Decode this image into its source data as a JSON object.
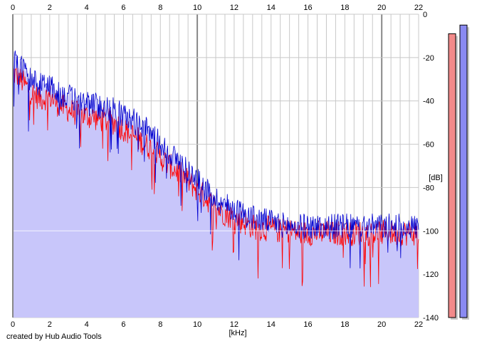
{
  "chart_data": {
    "type": "area",
    "title": "",
    "xlabel": "[kHz]",
    "ylabel": "[dB]",
    "xlim": [
      0,
      22
    ],
    "ylim": [
      -140,
      0
    ],
    "x_ticks": [
      "0",
      "2",
      "4",
      "6",
      "8",
      "10",
      "12",
      "14",
      "16",
      "18",
      "20",
      "22"
    ],
    "y_ticks": [
      "0",
      "-20",
      "-40",
      "-60",
      "-80",
      "-100",
      "-120",
      "-140"
    ],
    "grid": true,
    "colors": {
      "fill": "#c8c6fa",
      "red_channel": "#ff0000",
      "blue_channel": "#0000d0",
      "grid": "#c8c8c8",
      "major_grid": "#888888"
    },
    "series": [
      {
        "color": "#0000d0",
        "x": [
          0,
          0.5,
          1,
          1.5,
          2,
          2.5,
          3,
          3.5,
          4,
          4.5,
          5,
          5.5,
          6,
          6.5,
          7,
          7.5,
          8,
          8.5,
          9,
          9.5,
          10,
          10.5,
          11,
          11.5,
          12,
          12.5,
          13,
          13.5,
          14,
          14.5,
          15,
          15.5,
          16,
          16.5,
          17,
          17.5,
          18,
          18.5,
          19,
          19.5,
          20,
          20.5,
          21,
          21.5,
          22
        ],
        "values": [
          -20,
          -25,
          -30,
          -33,
          -32,
          -37,
          -38,
          -40,
          -41,
          -42,
          -43,
          -44,
          -47,
          -49,
          -52,
          -55,
          -60,
          -64,
          -68,
          -72,
          -77,
          -81,
          -85,
          -88,
          -90,
          -92,
          -94,
          -95,
          -96,
          -97,
          -98,
          -98,
          -98,
          -98,
          -98,
          -98,
          -98,
          -98,
          -98,
          -98,
          -98,
          -98,
          -98,
          -98,
          -98
        ]
      },
      {
        "color": "#ff0000",
        "x": [
          0,
          0.5,
          1,
          1.5,
          2,
          2.5,
          3,
          3.5,
          4,
          4.5,
          5,
          5.5,
          6,
          6.5,
          7,
          7.5,
          8,
          8.5,
          9,
          9.5,
          10,
          10.5,
          11,
          11.5,
          12,
          12.5,
          13,
          13.5,
          14,
          14.5,
          15,
          15.5,
          16,
          16.5,
          17,
          17.5,
          18,
          18.5,
          19,
          19.5,
          20,
          20.5,
          21,
          21.5,
          22
        ],
        "values": [
          -27,
          -31,
          -36,
          -39,
          -38,
          -42,
          -44,
          -46,
          -47,
          -48,
          -49,
          -50,
          -53,
          -56,
          -59,
          -62,
          -66,
          -70,
          -73,
          -77,
          -81,
          -85,
          -89,
          -92,
          -94,
          -96,
          -98,
          -99,
          -99,
          -100,
          -100,
          -101,
          -101,
          -101,
          -101,
          -101,
          -101,
          -101,
          -101,
          -101,
          -101,
          -101,
          -101,
          -101,
          -101
        ]
      }
    ],
    "level_meters": [
      {
        "color": "#f28a8a",
        "value_db": -9
      },
      {
        "color": "#8a8af2",
        "value_db": -5
      }
    ]
  },
  "credit": "created by Hub Audio Tools"
}
